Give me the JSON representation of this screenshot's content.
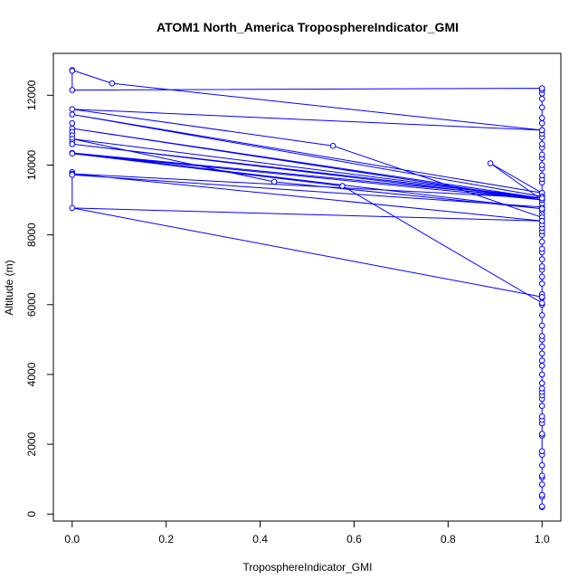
{
  "chart_data": {
    "type": "line",
    "title": "ATOM1 North_America TroposphereIndicator_GMI",
    "xlabel": "TroposphereIndicator_GMI",
    "ylabel": "Altitude (m)",
    "xlim": [
      -0.04,
      1.04
    ],
    "ylim": [
      -200,
      13200
    ],
    "xticks": [
      0.0,
      0.2,
      0.4,
      0.6,
      0.8,
      1.0
    ],
    "xtick_labels": [
      "0.0",
      "0.2",
      "0.4",
      "0.6",
      "0.8",
      "1.0"
    ],
    "yticks": [
      0,
      2000,
      4000,
      6000,
      8000,
      10000,
      12000
    ],
    "ytick_labels": [
      "0",
      "2000",
      "4000",
      "6000",
      "8000",
      "10000",
      "12000"
    ],
    "grid": false,
    "series": [
      {
        "color": "#0000ff",
        "marker": "open-circle",
        "points": [
          {
            "x": 1.0,
            "y": 200
          },
          {
            "x": 1.0,
            "y": 220
          },
          {
            "x": 1.0,
            "y": 500
          },
          {
            "x": 1.0,
            "y": 550
          },
          {
            "x": 1.0,
            "y": 850
          },
          {
            "x": 1.0,
            "y": 1050
          },
          {
            "x": 1.0,
            "y": 1100
          },
          {
            "x": 1.0,
            "y": 1400
          },
          {
            "x": 1.0,
            "y": 1700
          },
          {
            "x": 1.0,
            "y": 1800
          },
          {
            "x": 1.0,
            "y": 2250
          },
          {
            "x": 1.0,
            "y": 2300
          },
          {
            "x": 1.0,
            "y": 2600
          },
          {
            "x": 1.0,
            "y": 2700
          },
          {
            "x": 1.0,
            "y": 2800
          },
          {
            "x": 1.0,
            "y": 3100
          },
          {
            "x": 1.0,
            "y": 3300
          },
          {
            "x": 1.0,
            "y": 3400
          },
          {
            "x": 1.0,
            "y": 3500
          },
          {
            "x": 1.0,
            "y": 3600
          },
          {
            "x": 1.0,
            "y": 3750
          },
          {
            "x": 1.0,
            "y": 4000
          },
          {
            "x": 1.0,
            "y": 4250
          },
          {
            "x": 1.0,
            "y": 4400
          },
          {
            "x": 1.0,
            "y": 4600
          },
          {
            "x": 1.0,
            "y": 4800
          },
          {
            "x": 1.0,
            "y": 5000
          },
          {
            "x": 1.0,
            "y": 5100
          },
          {
            "x": 1.0,
            "y": 5400
          },
          {
            "x": 1.0,
            "y": 5700
          },
          {
            "x": 1.0,
            "y": 6000
          },
          {
            "x": 1.0,
            "y": 6200
          },
          {
            "x": 1.0,
            "y": 6300
          },
          {
            "x": 1.0,
            "y": 6600
          },
          {
            "x": 1.0,
            "y": 6800
          },
          {
            "x": 1.0,
            "y": 7000
          },
          {
            "x": 1.0,
            "y": 7100
          },
          {
            "x": 1.0,
            "y": 7300
          },
          {
            "x": 1.0,
            "y": 7500
          },
          {
            "x": 1.0,
            "y": 7600
          },
          {
            "x": 1.0,
            "y": 7800
          },
          {
            "x": 1.0,
            "y": 8000
          },
          {
            "x": 1.0,
            "y": 8100
          },
          {
            "x": 1.0,
            "y": 8200
          },
          {
            "x": 1.0,
            "y": 8300
          },
          {
            "x": 1.0,
            "y": 8400
          },
          {
            "x": 1.0,
            "y": 8500
          },
          {
            "x": 1.0,
            "y": 8600
          },
          {
            "x": 1.0,
            "y": 8700
          },
          {
            "x": 1.0,
            "y": 8800
          },
          {
            "x": 1.0,
            "y": 8900
          },
          {
            "x": 1.0,
            "y": 9000
          },
          {
            "x": 1.0,
            "y": 9100
          },
          {
            "x": 1.0,
            "y": 9200
          },
          {
            "x": 1.0,
            "y": 9500
          },
          {
            "x": 1.0,
            "y": 9600
          },
          {
            "x": 1.0,
            "y": 9700
          },
          {
            "x": 1.0,
            "y": 9900
          },
          {
            "x": 1.0,
            "y": 10000
          },
          {
            "x": 1.0,
            "y": 10200
          },
          {
            "x": 1.0,
            "y": 10300
          },
          {
            "x": 1.0,
            "y": 10500
          },
          {
            "x": 1.0,
            "y": 10600
          },
          {
            "x": 1.0,
            "y": 10800
          },
          {
            "x": 1.0,
            "y": 10900
          },
          {
            "x": 1.0,
            "y": 11000
          },
          {
            "x": 1.0,
            "y": 11200
          },
          {
            "x": 1.0,
            "y": 11350
          },
          {
            "x": 1.0,
            "y": 11650
          },
          {
            "x": 1.0,
            "y": 11900
          },
          {
            "x": 1.0,
            "y": 12050
          },
          {
            "x": 1.0,
            "y": 12150
          },
          {
            "x": 1.0,
            "y": 12200
          },
          {
            "x": 0.0,
            "y": 12150
          },
          {
            "x": 0.0,
            "y": 12720
          },
          {
            "x": 0.0,
            "y": 12700
          },
          {
            "x": 0.085,
            "y": 12340
          },
          {
            "x": 1.0,
            "y": 11000
          },
          {
            "x": 0.0,
            "y": 11600
          },
          {
            "x": 0.555,
            "y": 10550
          },
          {
            "x": 1.0,
            "y": 8500
          },
          {
            "x": 0.0,
            "y": 11450
          },
          {
            "x": 0.89,
            "y": 10050
          },
          {
            "x": 1.0,
            "y": 9200
          },
          {
            "x": 0.0,
            "y": 11200
          },
          {
            "x": 1.0,
            "y": 9100
          },
          {
            "x": 0.0,
            "y": 11050
          },
          {
            "x": 1.0,
            "y": 9050
          },
          {
            "x": 0.0,
            "y": 10950
          },
          {
            "x": 0.0,
            "y": 10850
          },
          {
            "x": 0.0,
            "y": 10750
          },
          {
            "x": 0.43,
            "y": 9520
          },
          {
            "x": 1.0,
            "y": 8750
          },
          {
            "x": 0.0,
            "y": 10650
          },
          {
            "x": 1.0,
            "y": 9000
          },
          {
            "x": 0.0,
            "y": 10600
          },
          {
            "x": 0.0,
            "y": 10350
          },
          {
            "x": 0.0,
            "y": 10330
          },
          {
            "x": 1.0,
            "y": 9050
          },
          {
            "x": 0.0,
            "y": 9800
          },
          {
            "x": 0.0,
            "y": 9750
          },
          {
            "x": 0.575,
            "y": 9400
          },
          {
            "x": 1.0,
            "y": 6050
          },
          {
            "x": 0.0,
            "y": 9720
          },
          {
            "x": 1.0,
            "y": 8400
          },
          {
            "x": 0.0,
            "y": 8770
          },
          {
            "x": 1.0,
            "y": 6220
          }
        ],
        "path": [
          {
            "x": 1.0,
            "y": 200
          },
          {
            "x": 1.0,
            "y": 12200
          },
          {
            "x": 0.0,
            "y": 12150
          },
          {
            "x": 0.0,
            "y": 12720
          },
          {
            "x": 0.085,
            "y": 12340
          },
          {
            "x": 1.0,
            "y": 11000
          },
          {
            "x": 0.0,
            "y": 11600
          },
          {
            "x": 0.555,
            "y": 10550
          },
          {
            "x": 1.0,
            "y": 8500
          },
          {
            "x": 1.0,
            "y": 9100
          },
          {
            "x": 0.0,
            "y": 11450
          },
          {
            "x": 1.0,
            "y": 9200
          },
          {
            "x": 0.89,
            "y": 10050
          },
          {
            "x": 1.0,
            "y": 9000
          },
          {
            "x": 0.0,
            "y": 11050
          },
          {
            "x": 1.0,
            "y": 9050
          },
          {
            "x": 0.0,
            "y": 10750
          },
          {
            "x": 0.43,
            "y": 9520
          },
          {
            "x": 1.0,
            "y": 8750
          },
          {
            "x": 0.0,
            "y": 10350
          },
          {
            "x": 1.0,
            "y": 9050
          },
          {
            "x": 0.0,
            "y": 10600
          },
          {
            "x": 1.0,
            "y": 9000
          },
          {
            "x": 0.0,
            "y": 10330
          },
          {
            "x": 0.575,
            "y": 9400
          },
          {
            "x": 1.0,
            "y": 6050
          },
          {
            "x": 1.0,
            "y": 9050
          },
          {
            "x": 0.0,
            "y": 9750
          },
          {
            "x": 1.0,
            "y": 8400
          },
          {
            "x": 0.0,
            "y": 8770
          },
          {
            "x": 1.0,
            "y": 6220
          },
          {
            "x": 1.0,
            "y": 8800
          },
          {
            "x": 0.0,
            "y": 9720
          },
          {
            "x": 0.0,
            "y": 8770
          }
        ]
      }
    ]
  }
}
